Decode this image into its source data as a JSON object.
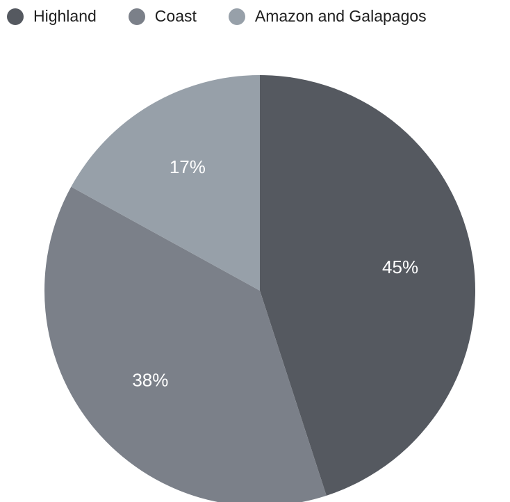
{
  "chart_data": {
    "type": "pie",
    "title": "",
    "legend_position": "top-left",
    "categories": [
      "Highland",
      "Coast",
      "Amazon and Galapagos"
    ],
    "values": [
      45,
      38,
      17
    ],
    "labels": [
      "45%",
      "38%",
      "17%"
    ],
    "colors": [
      "#555960",
      "#7b8089",
      "#97a0a9"
    ]
  }
}
